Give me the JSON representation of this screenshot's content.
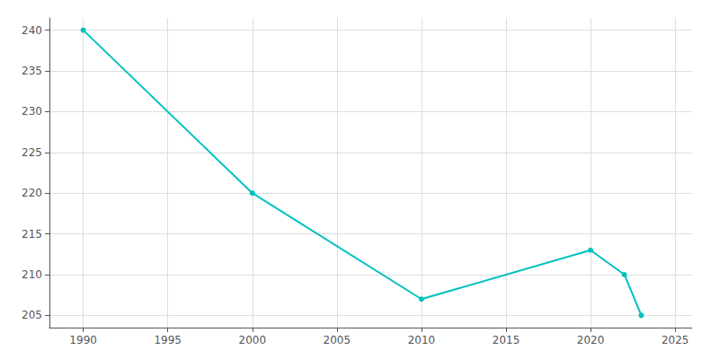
{
  "chart_data": {
    "type": "line",
    "x": [
      1990,
      2000,
      2010,
      2020,
      2022,
      2023
    ],
    "values": [
      240,
      220,
      207,
      213,
      210,
      205
    ],
    "color": "#00C0C0",
    "marker": "circle",
    "xlim": [
      1988,
      2026
    ],
    "ylim": [
      203.5,
      241.5
    ],
    "xticks": [
      1990,
      1995,
      2000,
      2005,
      2010,
      2015,
      2020,
      2025
    ],
    "yticks": [
      205,
      210,
      215,
      220,
      225,
      230,
      235,
      240
    ],
    "grid": true
  }
}
